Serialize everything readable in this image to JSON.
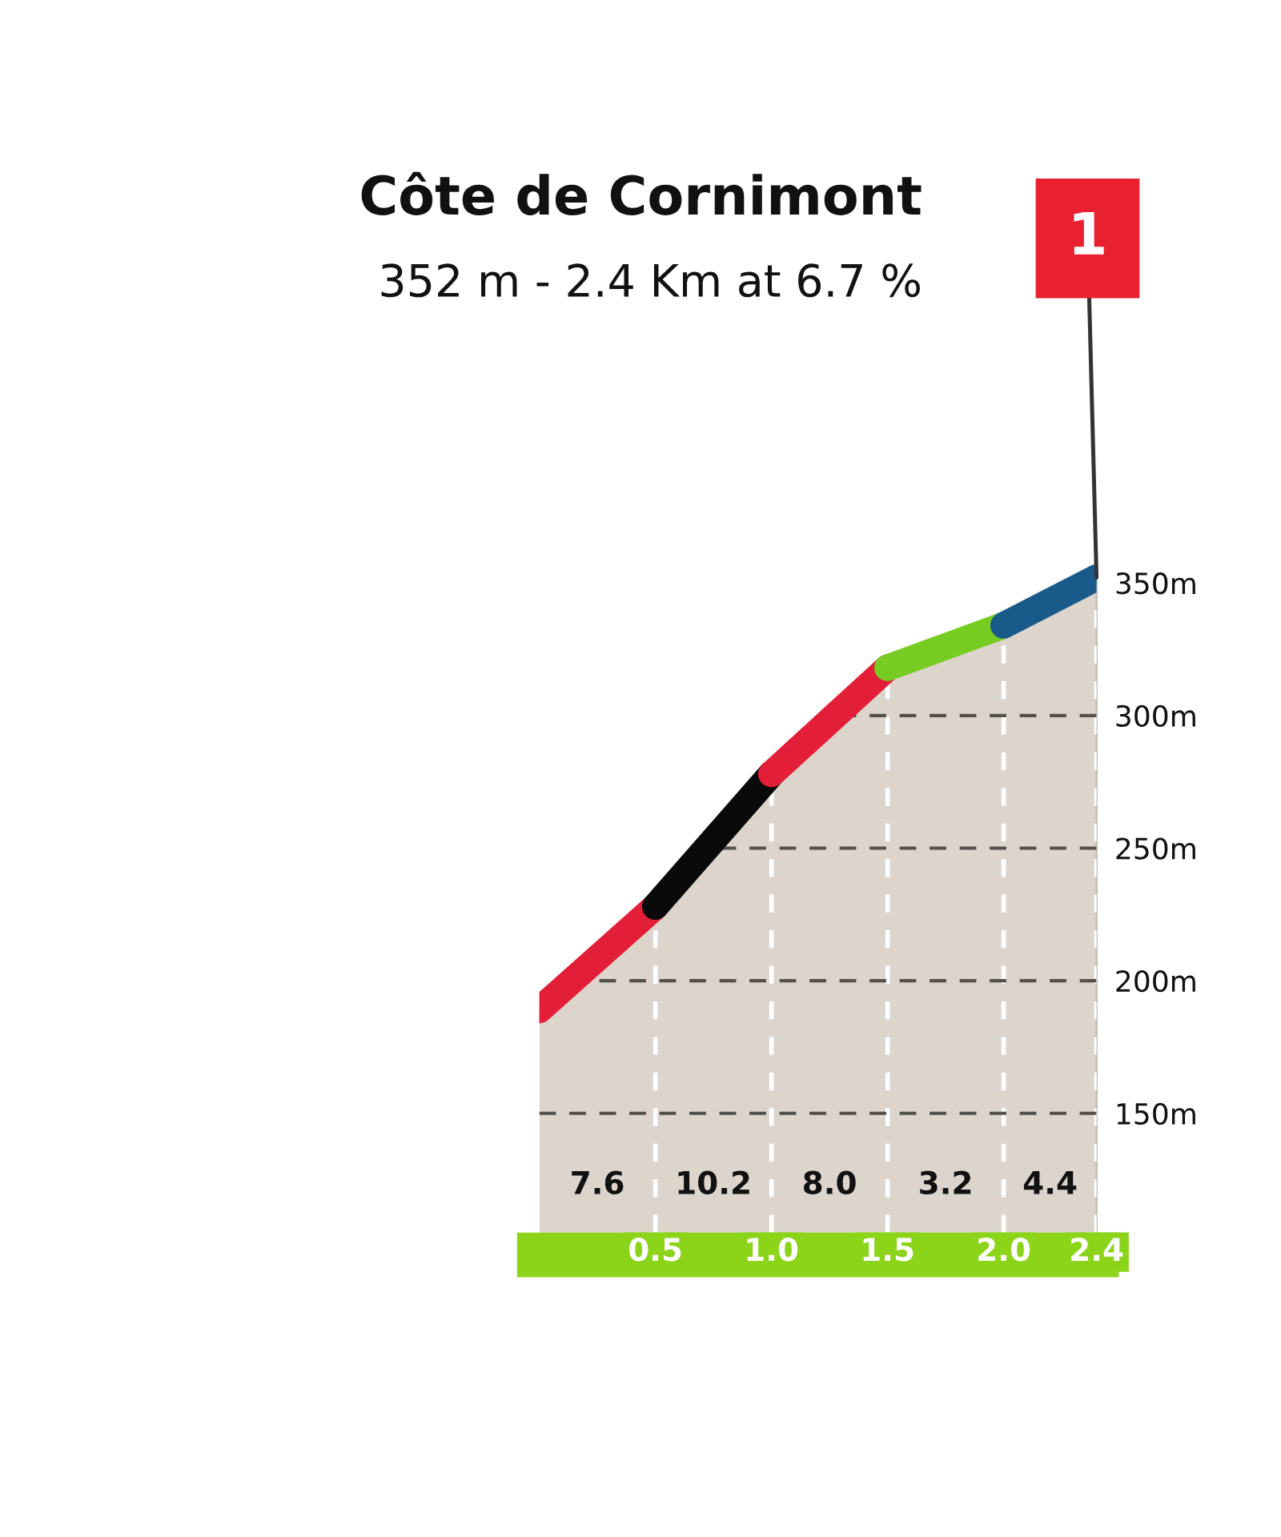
{
  "chart_data": {
    "type": "area",
    "title": "Côte de Cornimont",
    "subtitle": "352 m - 2.4 Km at 6.7 %",
    "x": [
      0,
      0.5,
      1.0,
      1.5,
      2.0,
      2.4
    ],
    "series": [
      {
        "color": "#ddd5cc",
        "colors": [
          null,
          "#e31e38",
          "#0a0a0a",
          "#e31e38",
          "#77cc22",
          "#1a5a8a"
        ],
        "values": [
          189,
          228,
          278,
          318,
          334,
          352
        ]
      }
    ],
    "xlim": [
      0,
      2.4
    ],
    "xticks": [
      0.5,
      {
        "value": 1,
        "label": "1.0"
      },
      1.5,
      {
        "value": 2,
        "label": "2.0"
      },
      2.4
    ],
    "ylim": [
      105,
      360
    ],
    "yticks": [
      {
        "value": 150,
        "label": "150m"
      },
      {
        "value": 200,
        "label": "200m"
      },
      {
        "value": 250,
        "label": "250m"
      },
      {
        "value": 300,
        "label": "300m"
      },
      {
        "value": 350,
        "label": "350m"
      }
    ],
    "grid": true,
    "annotations": [
      "7.6",
      "10.2",
      "8.0",
      "3.2",
      "4.4",
      "1"
    ]
  }
}
